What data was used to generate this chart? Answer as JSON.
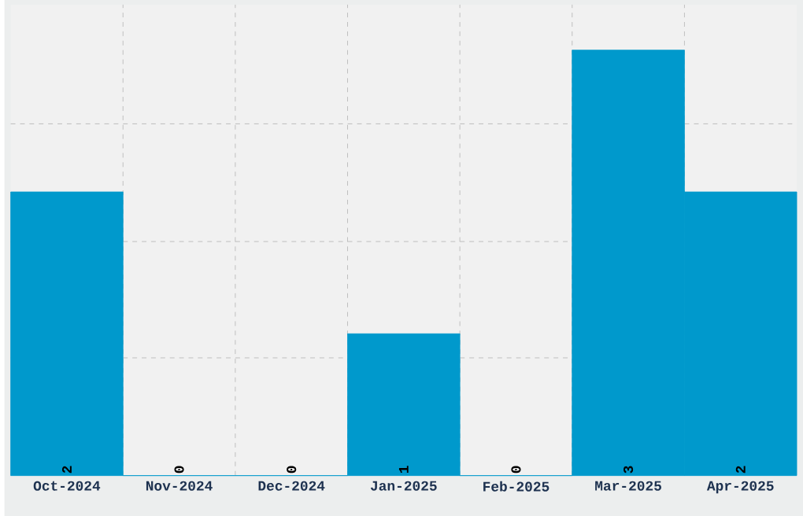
{
  "chart_data": {
    "type": "bar",
    "categories": [
      "Oct-2024",
      "Nov-2024",
      "Dec-2024",
      "Jan-2025",
      "Feb-2025",
      "Mar-2025",
      "Apr-2025"
    ],
    "values": [
      2,
      0,
      0,
      1,
      0,
      3,
      2
    ],
    "color": "#0099cc",
    "data_labels": true,
    "grid": true,
    "ylim": [
      0,
      3.32
    ],
    "yticks": [
      {
        "value": 0.83,
        "label": null
      },
      {
        "value": 1.65,
        "label": null
      },
      {
        "value": 2.48,
        "label": null
      }
    ]
  }
}
